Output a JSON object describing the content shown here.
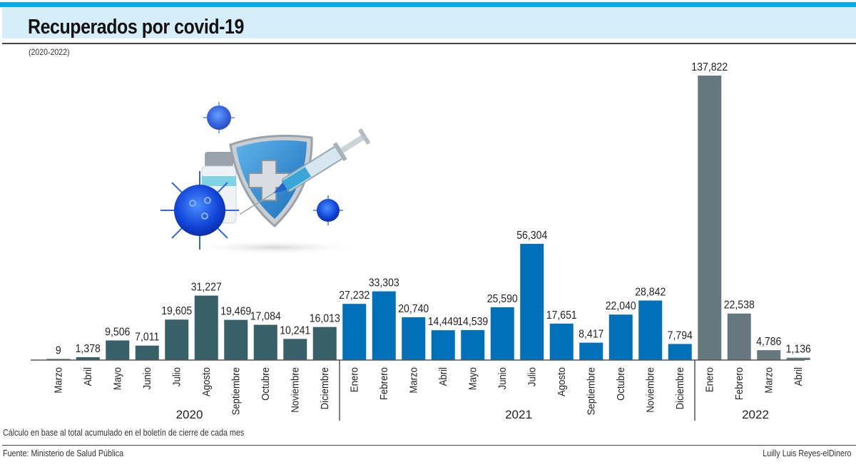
{
  "header": {
    "title": "Recuperados por covid-19",
    "subtitle": "(2020-2022)"
  },
  "footer": {
    "note": "Cálculo en base al total acumulado en el boletín de cierre de cada mes",
    "source": "Fuente: Ministerio de Salud Pública",
    "credit": "Luilly Luis Reyes-elDinero"
  },
  "colors": {
    "topbar": "#00aeef",
    "titlebar": "#d6eefa",
    "bar_2020": "#386068",
    "bar_2021": "#0070bb",
    "bar_2022": "#66787e"
  },
  "illustration": {
    "icons": [
      "shield-plus-icon",
      "syringe-icon",
      "vaccine-vial-icon",
      "virus-icon"
    ]
  },
  "chart_data": {
    "type": "bar",
    "title": "Recuperados por covid-19",
    "subtitle": "(2020-2022)",
    "xlabel": "",
    "ylabel": "",
    "ylim": [
      0,
      137822
    ],
    "grid": false,
    "groups": [
      {
        "year": "2020",
        "color": "#386068",
        "categories": [
          "Marzo",
          "Abril",
          "Mayo",
          "Junio",
          "Julio",
          "Agosto",
          "Septiembre",
          "Octubre",
          "Noviembre",
          "Diciembre"
        ],
        "values": [
          9,
          1378,
          9506,
          7011,
          19605,
          31227,
          19469,
          17084,
          10241,
          16013
        ],
        "labels": [
          "9",
          "1,378",
          "9,506",
          "7,011",
          "19,605",
          "31,227",
          "19,469",
          "17,084",
          "10,241",
          "16,013"
        ]
      },
      {
        "year": "2021",
        "color": "#0070bb",
        "categories": [
          "Enero",
          "Febrero",
          "Marzo",
          "Abril",
          "Mayo",
          "Junio",
          "Julio",
          "Agosto",
          "Septiembre",
          "Octubre",
          "Noviembre",
          "Diciembre"
        ],
        "values": [
          27232,
          33303,
          20740,
          14449,
          14539,
          25590,
          56304,
          17651,
          8417,
          22040,
          28842,
          7794
        ],
        "labels": [
          "27,232",
          "33,303",
          "20,740",
          "14,449",
          "14,539",
          "25,590",
          "56,304",
          "17,651",
          "8,417",
          "22,040",
          "28,842",
          "7,794"
        ]
      },
      {
        "year": "2022",
        "color": "#66787e",
        "categories": [
          "Enero",
          "Febrero",
          "Marzo",
          "Abril"
        ],
        "values": [
          137822,
          22538,
          4786,
          1136
        ],
        "labels": [
          "137,822",
          "22,538",
          "4,786",
          "1,136"
        ]
      }
    ]
  }
}
